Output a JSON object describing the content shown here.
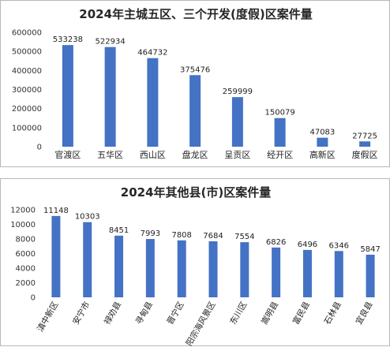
{
  "chart_data": [
    {
      "type": "bar",
      "title": "2024年主城五区、三个开发(度假)区案件量",
      "categories": [
        "官渡区",
        "五华区",
        "西山区",
        "盘龙区",
        "呈贡区",
        "经开区",
        "高新区",
        "度假区"
      ],
      "values": [
        533238,
        522934,
        464732,
        375476,
        259999,
        150079,
        47083,
        27725
      ],
      "data_labels": [
        "533238",
        "522934",
        "464732",
        "375476",
        "259999",
        "150079",
        "47083",
        "27725"
      ],
      "ylim": [
        0,
        600000
      ],
      "yticks": [
        0,
        100000,
        200000,
        300000,
        400000,
        500000,
        600000
      ],
      "ytick_labels": [
        "0",
        "100000",
        "200000",
        "300000",
        "400000",
        "500000",
        "600000"
      ],
      "bar_color": "#4472C4",
      "grid": false,
      "legend": "none"
    },
    {
      "type": "bar",
      "title": "2024年其他县(市)区案件量",
      "categories": [
        "滇中新区",
        "安宁市",
        "禄劝县",
        "寻甸县",
        "晋宁区",
        "阳宗海风景区",
        "东川区",
        "嵩明县",
        "富民县",
        "石林县",
        "宜良县"
      ],
      "values": [
        11148,
        10303,
        8451,
        7993,
        7808,
        7684,
        7554,
        6826,
        6496,
        6346,
        5847
      ],
      "data_labels": [
        "11148",
        "10303",
        "8451",
        "7993",
        "7808",
        "7684",
        "7554",
        "6826",
        "6496",
        "6346",
        "5847"
      ],
      "ylim": [
        0,
        12000
      ],
      "yticks": [
        0,
        2000,
        4000,
        6000,
        8000,
        10000,
        12000
      ],
      "ytick_labels": [
        "0",
        "2000",
        "4000",
        "6000",
        "8000",
        "10000",
        "12000"
      ],
      "bar_color": "#4472C4",
      "grid": false,
      "legend": "none"
    }
  ]
}
